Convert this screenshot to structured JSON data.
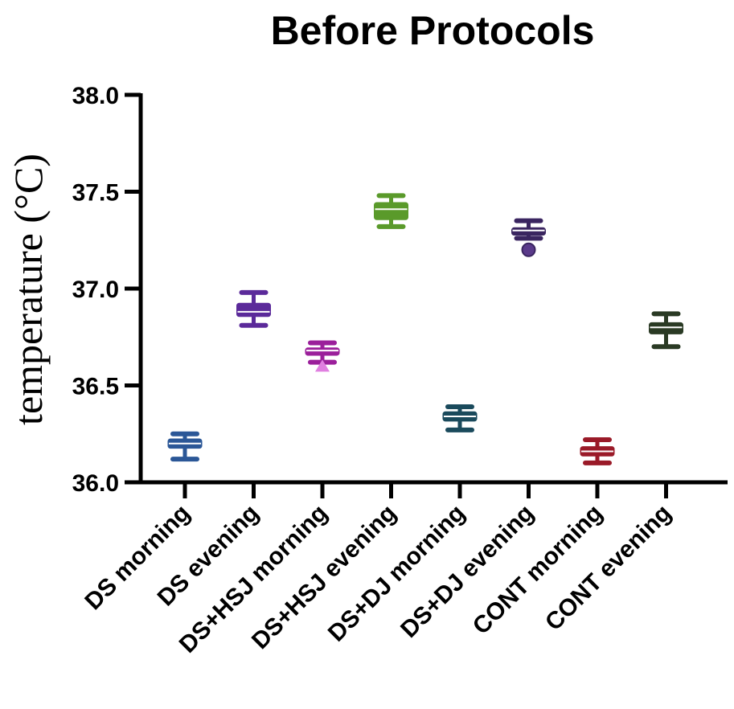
{
  "chart_data": {
    "type": "box",
    "title": "Before Protocols",
    "ylabel": "temperature (°C)",
    "xlabel": "",
    "ylim": [
      36.0,
      38.0
    ],
    "yticks": [
      "36.0",
      "36.5",
      "37.0",
      "37.5",
      "38.0"
    ],
    "grid": false,
    "categories": [
      "DS morning",
      "DS evening",
      "DS+HSJ morning",
      "DS+HSJ evening",
      "DS+DJ morning",
      "DS+DJ evening",
      "CONT morning",
      "CONT evening"
    ],
    "series": [
      {
        "whisker_low": 36.12,
        "q1": 36.18,
        "median": 36.2,
        "q3": 36.22,
        "whisker_high": 36.25,
        "outliers": [],
        "color": "#2b5797"
      },
      {
        "whisker_low": 36.81,
        "q1": 36.86,
        "median": 36.88,
        "q3": 36.92,
        "whisker_high": 36.98,
        "outliers": [],
        "color": "#5b2a9a"
      },
      {
        "whisker_low": 36.62,
        "q1": 36.66,
        "median": 36.68,
        "q3": 36.69,
        "whisker_high": 36.72,
        "outliers": [
          {
            "value": 36.6,
            "marker": "triangle"
          }
        ],
        "color": "#9b1f9b",
        "outlier_color": "#e07fe0"
      },
      {
        "whisker_low": 37.32,
        "q1": 37.36,
        "median": 37.41,
        "q3": 37.44,
        "whisker_high": 37.48,
        "outliers": [],
        "color": "#5a9a2a"
      },
      {
        "whisker_low": 36.27,
        "q1": 36.32,
        "median": 36.34,
        "q3": 36.36,
        "whisker_high": 36.39,
        "outliers": [],
        "color": "#1a4a5c"
      },
      {
        "whisker_low": 37.26,
        "q1": 37.28,
        "median": 37.3,
        "q3": 37.31,
        "whisker_high": 37.35,
        "outliers": [
          {
            "value": 37.2,
            "marker": "circle"
          }
        ],
        "color": "#3a2560",
        "outlier_color": "#5a3a8a"
      },
      {
        "whisker_low": 36.1,
        "q1": 36.14,
        "median": 36.16,
        "q3": 36.18,
        "whisker_high": 36.22,
        "outliers": [],
        "color": "#9a1a28"
      },
      {
        "whisker_low": 36.7,
        "q1": 36.77,
        "median": 36.8,
        "q3": 36.82,
        "whisker_high": 36.87,
        "outliers": [],
        "color": "#2a3a24"
      }
    ]
  }
}
